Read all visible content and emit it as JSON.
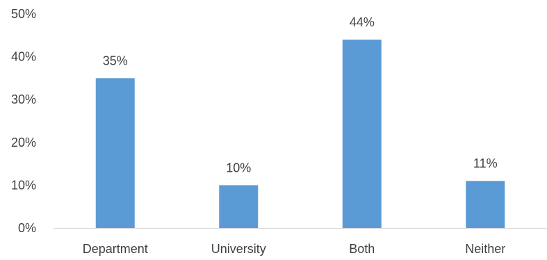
{
  "chart_data": {
    "type": "bar",
    "categories": [
      "Department",
      "University",
      "Both",
      "Neither"
    ],
    "values": [
      35,
      10,
      44,
      11
    ],
    "data_labels": [
      "35%",
      "10%",
      "44%",
      "11%"
    ],
    "y_ticks": [
      0,
      10,
      20,
      30,
      40,
      50
    ],
    "y_tick_labels": [
      "0%",
      "10%",
      "20%",
      "30%",
      "40%",
      "50%"
    ],
    "ylim": [
      0,
      50
    ],
    "grid": false,
    "legend": "none",
    "bar_color": "#5b9bd5",
    "axis_color": "#d9d9d9",
    "text_color": "#404040"
  }
}
